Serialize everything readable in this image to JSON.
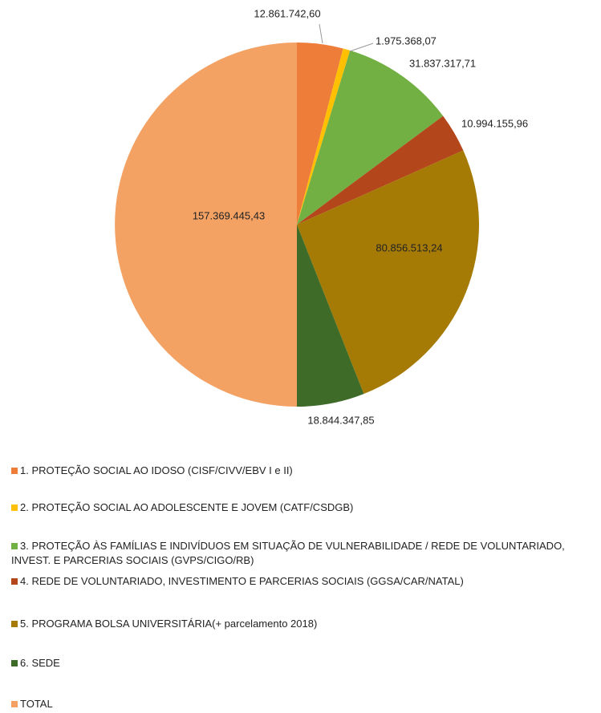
{
  "chart_data": {
    "type": "pie",
    "categories": [
      "1. PROTEÇÃO SOCIAL AO IDOSO (CISF/CIVV/EBV I e II)",
      "2. PROTEÇÃO SOCIAL AO ADOLESCENTE E JOVEM (CATF/CSDGB)",
      "3. PROTEÇÃO ÀS FAMÍLIAS E INDIVÍDUOS EM SITUAÇÃO DE VULNERABILIDADE / REDE DE VOLUNTARIADO, INVEST. E PARCERIAS SOCIAIS (GVPS/CIGO/RB)",
      "4. REDE DE VOLUNTARIADO, INVESTIMENTO E PARCERIAS SOCIAIS (GGSA/CAR/NATAL)",
      "5. PROGRAMA BOLSA UNIVERSITÁRIA(+ parcelamento 2018)",
      "6. SEDE",
      "TOTAL"
    ],
    "values": [
      12861742.6,
      1975368.07,
      31837317.71,
      10994155.96,
      80856513.24,
      18844347.85,
      157369445.43
    ],
    "value_labels": [
      "12.861.742,60",
      "1.975.368,07",
      "31.837.317,71",
      "10.994.155,96",
      "80.856.513,24",
      "18.844.347,85",
      "157.369.445,43"
    ],
    "colors": [
      "#ef7d3a",
      "#ffc000",
      "#72b043",
      "#b4461b",
      "#a57b05",
      "#3e6b27",
      "#f3a264"
    ]
  }
}
